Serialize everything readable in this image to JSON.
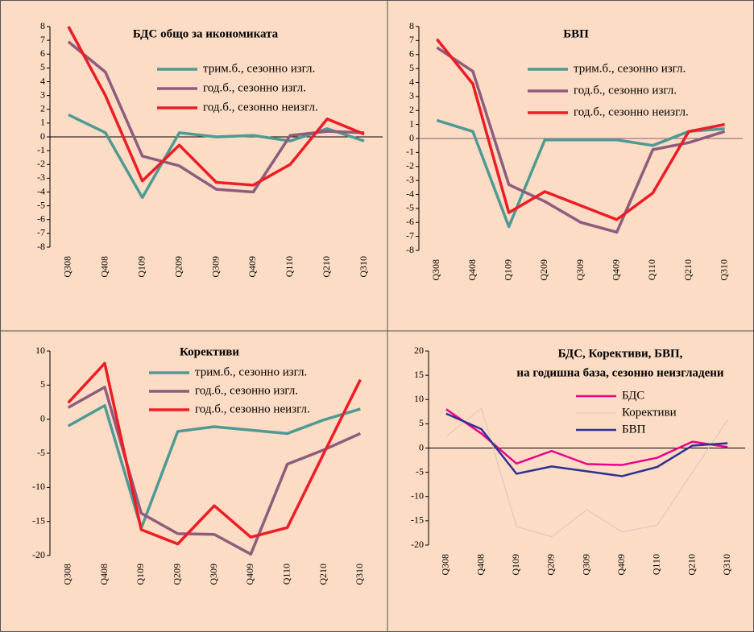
{
  "chart_data": [
    {
      "type": "line",
      "title": "БДС общо за икономиката",
      "categories": [
        "Q308",
        "Q408",
        "Q109",
        "Q209",
        "Q309",
        "Q409",
        "Q110",
        "Q210",
        "Q310"
      ],
      "ylim": [
        -8,
        8
      ],
      "yticks": [
        -8,
        -7,
        -6,
        -5,
        -4,
        -3,
        -2,
        -1,
        0,
        1,
        2,
        3,
        4,
        5,
        6,
        7,
        8
      ],
      "zero_line_color": "#000000",
      "series": [
        {
          "name": "трим.б., сезонно изгл.",
          "color": "#4f9a94",
          "values": [
            1.6,
            0.3,
            -4.4,
            0.3,
            0.0,
            0.1,
            -0.3,
            0.6,
            -0.3
          ]
        },
        {
          "name": "год.б., сезонно изгл.",
          "color": "#8e5c7e",
          "values": [
            6.9,
            4.7,
            -1.4,
            -2.1,
            -3.8,
            -4.0,
            0.1,
            0.4,
            0.3
          ]
        },
        {
          "name": "год.б., сезонно неизгл.",
          "color": "#ee1c25",
          "values": [
            8.0,
            3.0,
            -3.2,
            -0.6,
            -3.3,
            -3.5,
            -2.0,
            1.3,
            0.2
          ]
        }
      ]
    },
    {
      "type": "line",
      "title": "БВП",
      "categories": [
        "Q308",
        "Q408",
        "Q109",
        "Q209",
        "Q309",
        "Q409",
        "Q110",
        "Q210",
        "Q310"
      ],
      "ylim": [
        -8,
        8
      ],
      "yticks": [
        -8,
        -7,
        -6,
        -5,
        -4,
        -3,
        -2,
        -1,
        0,
        1,
        2,
        3,
        4,
        5,
        6,
        7,
        8
      ],
      "zero_line_color": "#8e5c7e",
      "series": [
        {
          "name": "трим.б., сезонно изгл.",
          "color": "#4f9a94",
          "values": [
            1.3,
            0.5,
            -6.3,
            -0.1,
            -0.1,
            -0.1,
            -0.5,
            0.5,
            0.7
          ]
        },
        {
          "name": "год.б., сезонно изгл.",
          "color": "#8e5c7e",
          "values": [
            6.5,
            4.8,
            -3.3,
            -4.5,
            -6.0,
            -6.7,
            -0.8,
            -0.3,
            0.5
          ]
        },
        {
          "name": "год.б., сезонно неизгл.",
          "color": "#ee1c25",
          "values": [
            7.1,
            3.9,
            -5.3,
            -3.8,
            -4.8,
            -5.8,
            -3.9,
            0.5,
            1.0
          ]
        }
      ]
    },
    {
      "type": "line",
      "title": "Корективи",
      "categories": [
        "Q308",
        "Q408",
        "Q109",
        "Q209",
        "Q309",
        "Q409",
        "Q110",
        "Q210",
        "Q310"
      ],
      "ylim": [
        -20,
        10
      ],
      "yticks": [
        -20,
        -15,
        -10,
        -5,
        0,
        5,
        10
      ],
      "series": [
        {
          "name": "трим.б., сезонно изгл.",
          "color": "#4f9a94",
          "values": [
            -1.0,
            2.0,
            -16.0,
            -1.8,
            -1.1,
            -1.6,
            -2.1,
            -0.1,
            1.5
          ]
        },
        {
          "name": "год.б., сезонно изгл.",
          "color": "#8e5c7e",
          "values": [
            1.7,
            4.7,
            -13.8,
            -16.8,
            -16.9,
            -19.8,
            -6.6,
            -4.5,
            -2.1
          ]
        },
        {
          "name": "год.б., сезонно неизгл.",
          "color": "#ee1c25",
          "values": [
            2.4,
            8.2,
            -16.2,
            -18.3,
            -12.7,
            -17.3,
            -15.9,
            -5.0,
            5.8
          ]
        }
      ]
    },
    {
      "type": "line",
      "title": "БДС, Корективи, БВП,",
      "subtitle": "на годишна база, сезонно неизгладени",
      "categories": [
        "Q308",
        "Q408",
        "Q109",
        "Q209",
        "Q309",
        "Q409",
        "Q110",
        "Q210",
        "Q310"
      ],
      "ylim": [
        -20,
        20
      ],
      "yticks": [
        -20,
        -15,
        -10,
        -5,
        0,
        5,
        10,
        15,
        20
      ],
      "zero_line_color": "#000000",
      "series": [
        {
          "name": "БДС",
          "color": "#ec008c",
          "values": [
            8.0,
            3.0,
            -3.2,
            -0.6,
            -3.3,
            -3.5,
            -2.0,
            1.3,
            0.2
          ]
        },
        {
          "name": "Корективи",
          "color": "#d9c6b8",
          "values": [
            2.4,
            8.2,
            -16.2,
            -18.3,
            -12.7,
            -17.3,
            -15.9,
            -5.0,
            5.8
          ]
        },
        {
          "name": "БВП",
          "color": "#2e3192",
          "values": [
            7.1,
            3.9,
            -5.3,
            -3.8,
            -4.8,
            -5.8,
            -3.9,
            0.5,
            1.0
          ]
        }
      ]
    }
  ]
}
